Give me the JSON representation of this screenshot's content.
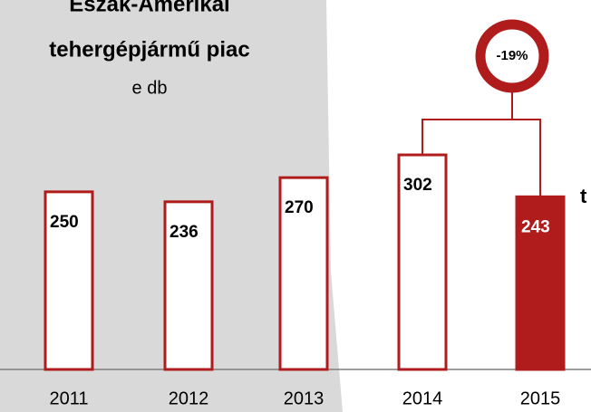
{
  "chart_data": {
    "type": "bar",
    "title_lines": [
      "Észak-Amerikai",
      "tehergépjármű piac"
    ],
    "subtitle": "e db",
    "categories": [
      "2011",
      "2012",
      "2013",
      "2014",
      "2015"
    ],
    "values": [
      250,
      236,
      270,
      302,
      243
    ],
    "color": "#b01c1c",
    "fill_colors": [
      "#ffffff",
      "#ffffff",
      "#ffffff",
      "#ffffff",
      "#b01c1c"
    ],
    "label_colors": [
      "#000000",
      "#000000",
      "#000000",
      "#000000",
      "#ffffff"
    ],
    "ylim": [
      0,
      520
    ],
    "change_annotation": "-19%",
    "cut_text": "t"
  }
}
